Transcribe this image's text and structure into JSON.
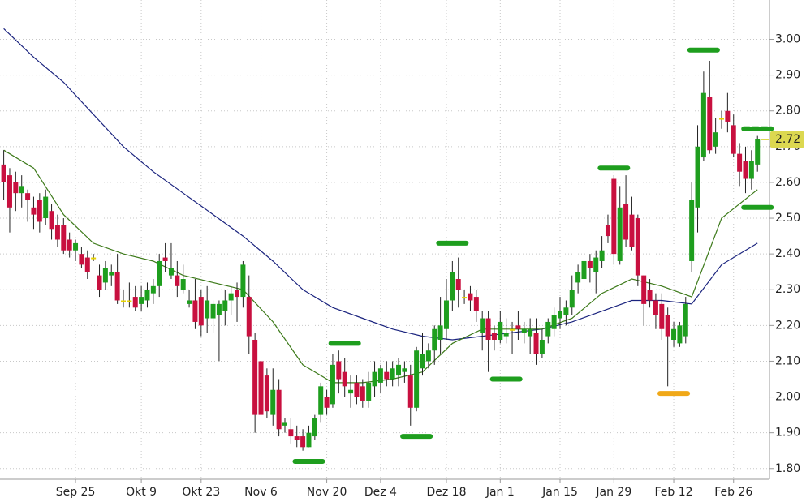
{
  "chart_data": {
    "type": "candlestick",
    "up_color": "#1e9e1e",
    "down_color": "#c8103f",
    "flat_color": "#e6d200",
    "categories": [
      null,
      null,
      null,
      null,
      null,
      null,
      null,
      null,
      null,
      null,
      null,
      null,
      "Sep 25",
      null,
      null,
      null,
      null,
      null,
      null,
      null,
      null,
      null,
      null,
      "Okt 9",
      null,
      null,
      null,
      null,
      null,
      null,
      null,
      null,
      null,
      "Okt 23",
      null,
      null,
      null,
      null,
      null,
      null,
      null,
      null,
      null,
      "Nov 6",
      null,
      null,
      null,
      null,
      null,
      null,
      null,
      null,
      null,
      null,
      "Nov 20",
      null,
      null,
      null,
      null,
      null,
      null,
      null,
      null,
      "Dez 4",
      null,
      null,
      null,
      null,
      null,
      null,
      null,
      null,
      null,
      null,
      "Dez 18",
      null,
      null,
      null,
      null,
      null,
      null,
      null,
      null,
      "Jan 1",
      null,
      null,
      null,
      null,
      null,
      null,
      null,
      null,
      null,
      "Jan 15",
      null,
      null,
      null,
      null,
      null,
      null,
      null,
      null,
      "Jan 29",
      null,
      null,
      null,
      null,
      null,
      null,
      null,
      null,
      null,
      "Feb 12",
      null,
      null,
      null,
      null,
      null,
      null,
      null,
      null,
      null,
      "Feb 26",
      null,
      null,
      null,
      null
    ],
    "open": [
      2.65,
      2.62,
      2.6,
      2.57,
      2.57,
      2.53,
      2.55,
      2.5,
      2.52,
      2.48,
      2.48,
      2.44,
      2.41,
      2.4,
      2.39,
      2.39,
      2.34,
      2.32,
      2.34,
      2.35,
      2.27,
      2.27,
      2.28,
      2.26,
      2.27,
      2.29,
      2.31,
      2.39,
      2.34,
      2.34,
      2.3,
      2.26,
      2.27,
      2.28,
      2.22,
      2.22,
      2.23,
      2.24,
      2.27,
      2.3,
      2.28,
      2.28,
      2.16,
      2.1,
      2.06,
      1.95,
      2.02,
      1.92,
      1.91,
      1.89,
      1.89,
      1.86,
      1.89,
      1.95,
      2.0,
      1.98,
      2.1,
      2.07,
      2.01,
      2.04,
      2.03,
      1.99,
      2.03,
      2.04,
      2.07,
      2.05,
      2.06,
      2.07,
      2.06,
      1.97,
      2.08,
      2.1,
      2.13,
      2.16,
      2.19,
      2.27,
      2.33,
      2.28,
      2.29,
      2.28,
      2.18,
      2.22,
      2.18,
      2.16,
      2.17,
      2.19,
      2.2,
      2.18,
      2.17,
      2.18,
      2.12,
      2.17,
      2.19,
      2.22,
      2.23,
      2.25,
      2.32,
      2.33,
      2.38,
      2.35,
      2.38,
      2.48,
      2.61,
      2.38,
      2.54,
      2.51,
      2.5,
      2.34,
      2.3,
      2.27,
      2.26,
      2.23,
      2.16,
      2.15,
      2.17,
      2.38,
      2.53,
      2.67,
      2.84,
      2.7,
      2.78,
      2.8,
      2.76,
      2.68,
      2.66,
      2.61,
      2.65
    ],
    "high": [
      2.69,
      2.64,
      2.63,
      2.62,
      2.58,
      2.56,
      2.57,
      2.58,
      2.54,
      2.51,
      2.5,
      2.46,
      2.44,
      2.42,
      2.41,
      2.4,
      2.37,
      2.38,
      2.37,
      2.4,
      2.3,
      2.32,
      2.31,
      2.31,
      2.32,
      2.33,
      2.4,
      2.43,
      2.43,
      2.38,
      2.37,
      2.3,
      2.33,
      2.3,
      2.31,
      2.27,
      2.27,
      2.3,
      2.31,
      2.32,
      2.38,
      2.34,
      2.18,
      2.14,
      2.08,
      2.08,
      2.05,
      1.94,
      1.94,
      1.92,
      1.91,
      1.92,
      1.95,
      2.04,
      2.02,
      2.12,
      2.13,
      2.11,
      2.06,
      2.06,
      2.05,
      2.07,
      2.1,
      2.09,
      2.1,
      2.1,
      2.11,
      2.1,
      2.09,
      2.14,
      2.18,
      2.15,
      2.2,
      2.28,
      2.33,
      2.38,
      2.39,
      2.3,
      2.31,
      2.3,
      2.24,
      2.24,
      2.2,
      2.24,
      2.22,
      2.21,
      2.24,
      2.21,
      2.22,
      2.22,
      2.19,
      2.22,
      2.25,
      2.28,
      2.27,
      2.34,
      2.37,
      2.4,
      2.4,
      2.41,
      2.45,
      2.51,
      2.62,
      2.59,
      2.62,
      2.56,
      2.51,
      2.34,
      2.33,
      2.29,
      2.29,
      2.25,
      2.21,
      2.21,
      2.28,
      2.6,
      2.76,
      2.91,
      2.94,
      2.78,
      2.8,
      2.85,
      2.79,
      2.71,
      2.7,
      2.69,
      2.73
    ],
    "low": [
      2.55,
      2.46,
      2.52,
      2.53,
      2.49,
      2.47,
      2.46,
      2.48,
      2.44,
      2.42,
      2.4,
      2.39,
      2.38,
      2.36,
      2.33,
      2.38,
      2.28,
      2.3,
      2.31,
      2.26,
      2.25,
      2.25,
      2.24,
      2.24,
      2.25,
      2.26,
      2.28,
      2.35,
      2.33,
      2.28,
      2.29,
      2.25,
      2.19,
      2.17,
      2.18,
      2.18,
      2.1,
      2.2,
      2.23,
      2.21,
      2.25,
      2.12,
      1.9,
      1.9,
      1.94,
      1.92,
      1.89,
      1.9,
      1.87,
      1.86,
      1.85,
      1.86,
      1.88,
      1.93,
      1.95,
      1.97,
      2.01,
      2.0,
      1.97,
      1.98,
      1.97,
      1.97,
      2.0,
      2.01,
      2.03,
      2.03,
      2.03,
      2.04,
      1.92,
      1.96,
      2.06,
      2.08,
      2.09,
      2.12,
      2.16,
      2.24,
      2.25,
      2.26,
      2.24,
      2.21,
      2.13,
      2.07,
      2.13,
      2.15,
      2.15,
      2.12,
      2.16,
      2.15,
      2.12,
      2.09,
      2.11,
      2.15,
      2.17,
      2.19,
      2.2,
      2.23,
      2.29,
      2.3,
      2.32,
      2.29,
      2.36,
      2.43,
      2.37,
      2.37,
      2.42,
      2.41,
      2.31,
      2.2,
      2.25,
      2.19,
      2.16,
      2.03,
      2.14,
      2.14,
      2.15,
      2.35,
      2.46,
      2.66,
      2.68,
      2.68,
      2.75,
      2.74,
      2.67,
      2.59,
      2.57,
      2.58,
      2.63
    ],
    "close": [
      2.6,
      2.53,
      2.57,
      2.59,
      2.55,
      2.51,
      2.49,
      2.56,
      2.47,
      2.44,
      2.41,
      2.41,
      2.43,
      2.37,
      2.35,
      2.39,
      2.3,
      2.36,
      2.35,
      2.27,
      2.27,
      2.27,
      2.25,
      2.28,
      2.3,
      2.31,
      2.38,
      2.38,
      2.36,
      2.31,
      2.33,
      2.27,
      2.21,
      2.2,
      2.27,
      2.26,
      2.26,
      2.27,
      2.29,
      2.28,
      2.37,
      2.17,
      1.95,
      1.95,
      1.96,
      2.02,
      1.91,
      1.93,
      1.89,
      1.88,
      1.86,
      1.9,
      1.94,
      2.03,
      1.97,
      2.09,
      2.05,
      2.03,
      2.02,
      2.0,
      1.99,
      2.04,
      2.07,
      2.08,
      2.05,
      2.08,
      2.09,
      2.08,
      1.97,
      2.13,
      2.12,
      2.13,
      2.19,
      2.2,
      2.27,
      2.35,
      2.3,
      2.28,
      2.27,
      2.24,
      2.22,
      2.16,
      2.16,
      2.21,
      2.18,
      2.19,
      2.19,
      2.19,
      2.19,
      2.12,
      2.16,
      2.21,
      2.23,
      2.24,
      2.25,
      2.3,
      2.35,
      2.38,
      2.36,
      2.39,
      2.41,
      2.45,
      2.4,
      2.53,
      2.44,
      2.42,
      2.34,
      2.26,
      2.27,
      2.23,
      2.19,
      2.17,
      2.19,
      2.2,
      2.26,
      2.55,
      2.7,
      2.85,
      2.69,
      2.74,
      2.78,
      2.77,
      2.68,
      2.63,
      2.61,
      2.66,
      2.72
    ],
    "overlays": [
      {
        "color": "#1a237e",
        "x": [
          0,
          5,
          10,
          15,
          20,
          25,
          30,
          35,
          40,
          45,
          50,
          55,
          60,
          65,
          70,
          75,
          80,
          85,
          90,
          95,
          100,
          105,
          110,
          115,
          120,
          126
        ],
        "values": [
          3.03,
          2.95,
          2.88,
          2.79,
          2.7,
          2.63,
          2.57,
          2.51,
          2.45,
          2.38,
          2.3,
          2.25,
          2.22,
          2.19,
          2.17,
          2.16,
          2.17,
          2.18,
          2.19,
          2.21,
          2.24,
          2.27,
          2.27,
          2.26,
          2.37,
          2.43
        ]
      },
      {
        "color": "#3d7a1a",
        "x": [
          0,
          5,
          10,
          15,
          20,
          25,
          30,
          35,
          40,
          45,
          50,
          55,
          60,
          65,
          70,
          75,
          80,
          85,
          90,
          95,
          100,
          105,
          110,
          115,
          120,
          126
        ],
        "values": [
          2.69,
          2.64,
          2.51,
          2.43,
          2.4,
          2.38,
          2.34,
          2.32,
          2.3,
          2.21,
          2.09,
          2.04,
          2.04,
          2.05,
          2.07,
          2.15,
          2.19,
          2.19,
          2.19,
          2.22,
          2.29,
          2.33,
          2.31,
          2.28,
          2.5,
          2.58
        ]
      }
    ],
    "markers": [
      {
        "index": 51,
        "value": 1.82,
        "color": "#1e9e1e"
      },
      {
        "index": 57,
        "value": 2.15,
        "color": "#1e9e1e"
      },
      {
        "index": 69,
        "value": 1.89,
        "color": "#1e9e1e"
      },
      {
        "index": 75,
        "value": 2.43,
        "color": "#1e9e1e"
      },
      {
        "index": 84,
        "value": 2.05,
        "color": "#1e9e1e"
      },
      {
        "index": 102,
        "value": 2.64,
        "color": "#1e9e1e"
      },
      {
        "index": 112,
        "value": 2.01,
        "color": "#f0a818"
      },
      {
        "index": 117,
        "value": 2.97,
        "color": "#1e9e1e"
      },
      {
        "index": 126,
        "value": 2.53,
        "color": "#1e9e1e"
      },
      {
        "index": 126,
        "value": 2.75,
        "color": "#1e9e1e",
        "dashed": true
      }
    ],
    "last_price": 2.72,
    "last_price_color": "#dcd850",
    "ylim": [
      1.77,
      3.11
    ],
    "yticks": [
      {
        "value": 1.8,
        "label": "1.80"
      },
      {
        "value": 1.9,
        "label": "1.90"
      },
      {
        "value": 2.0,
        "label": "2.00"
      },
      {
        "value": 2.1,
        "label": "2.10"
      },
      {
        "value": 2.2,
        "label": "2.20"
      },
      {
        "value": 2.3,
        "label": "2.30"
      },
      {
        "value": 2.4,
        "label": "2.40"
      },
      {
        "value": 2.5,
        "label": "2.50"
      },
      {
        "value": 2.6,
        "label": "2.60"
      },
      {
        "value": 2.7,
        "label": "2.70"
      },
      {
        "value": 2.8,
        "label": "2.80"
      },
      {
        "value": 2.9,
        "label": "2.90"
      },
      {
        "value": 3.0,
        "label": "3.00"
      }
    ],
    "grid": true
  }
}
